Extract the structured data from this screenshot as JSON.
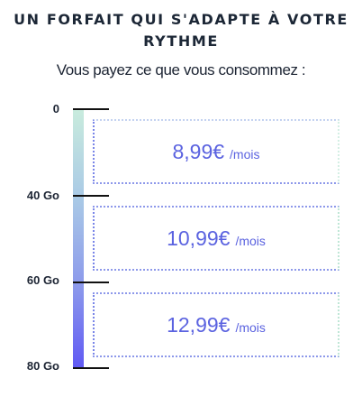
{
  "header": {
    "title_line1": "UN FORFAIT QUI S'ADAPTE À VOTRE",
    "title_line2": "RYTHME",
    "subtitle": "Vous payez ce que vous consommez :"
  },
  "scale": {
    "labels": [
      "0",
      "40 Go",
      "60 Go",
      "80 Go"
    ]
  },
  "tiers": [
    {
      "price": "8,99€",
      "unit": "/mois"
    },
    {
      "price": "10,99€",
      "unit": "/mois"
    },
    {
      "price": "12,99€",
      "unit": "/mois"
    }
  ],
  "colors": {
    "accent": "#5b63e0",
    "gauge_top": "#c9ecdd",
    "gauge_bottom": "#5f58f4",
    "text": "#1c2433"
  }
}
